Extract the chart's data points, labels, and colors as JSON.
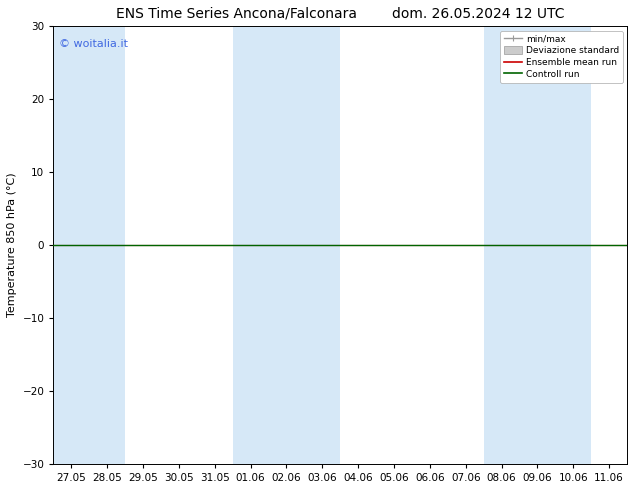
{
  "title": "ENS Time Series Ancona/Falconara        dom. 26.05.2024 12 UTC",
  "ylabel": "Temperature 850 hPa (°C)",
  "ylim": [
    -30,
    30
  ],
  "yticks": [
    -30,
    -20,
    -10,
    0,
    10,
    20,
    30
  ],
  "x_labels": [
    "27.05",
    "28.05",
    "29.05",
    "30.05",
    "31.05",
    "01.06",
    "02.06",
    "03.06",
    "04.06",
    "05.06",
    "06.06",
    "07.06",
    "08.06",
    "09.06",
    "10.06",
    "11.06"
  ],
  "shaded_bands": [
    {
      "xmin": 0,
      "xmax": 1
    },
    {
      "xmin": 5,
      "xmax": 7
    },
    {
      "xmin": 12,
      "xmax": 14
    }
  ],
  "shaded_color": "#d6e8f7",
  "line_color_green": "#006400",
  "line_color_red": "#cc0000",
  "bg_color": "#ffffff",
  "legend_labels": [
    "min/max",
    "Deviazione standard",
    "Ensemble mean run",
    "Controll run"
  ],
  "legend_minmax_color": "#999999",
  "legend_std_color": "#cccccc",
  "legend_mean_color": "#cc0000",
  "legend_ctrl_color": "#006400",
  "watermark_text": "© woitalia.it",
  "watermark_color": "#4169e1",
  "title_fontsize": 10,
  "label_fontsize": 8,
  "tick_fontsize": 7.5
}
